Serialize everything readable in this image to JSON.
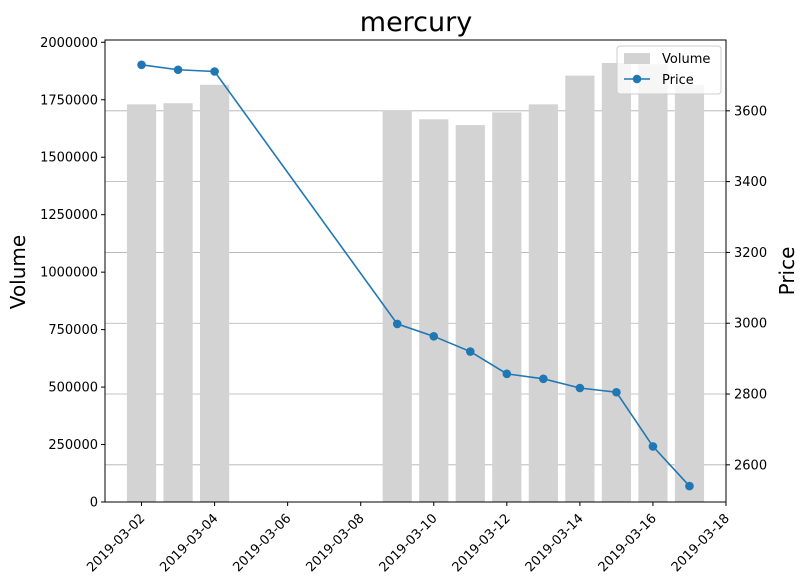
{
  "chart_data": {
    "type": "bar+line",
    "title": "mercury",
    "xlabel": "",
    "ylabel_left": "Volume",
    "ylabel_right": "Price",
    "x_ticks": [
      "2019-03-02",
      "2019-03-04",
      "2019-03-06",
      "2019-03-08",
      "2019-03-10",
      "2019-03-12",
      "2019-03-14",
      "2019-03-16",
      "2019-03-18"
    ],
    "x_range": [
      "2019-03-01",
      "2019-03-18"
    ],
    "y_left_ticks": [
      "0",
      "250000",
      "500000",
      "750000",
      "1000000",
      "1250000",
      "1500000",
      "1750000",
      "2000000"
    ],
    "y_left_range": [
      0,
      2010000
    ],
    "y_right_ticks": [
      "2600",
      "2800",
      "3000",
      "3200",
      "3400",
      "3600"
    ],
    "y_right_range": [
      2495,
      3800
    ],
    "grid": "horizontal, right axis",
    "legend_position": "top-right",
    "colors": {
      "volume": "#d3d3d3",
      "price": "#1f77b4",
      "grid": "#b0b0b0"
    },
    "series": [
      {
        "name": "Volume",
        "kind": "bar",
        "axis": "left",
        "points": [
          {
            "date": "2019-03-02",
            "value": 1730000
          },
          {
            "date": "2019-03-03",
            "value": 1735000
          },
          {
            "date": "2019-03-04",
            "value": 1815000
          },
          {
            "date": "2019-03-09",
            "value": 1705000
          },
          {
            "date": "2019-03-10",
            "value": 1665000
          },
          {
            "date": "2019-03-11",
            "value": 1640000
          },
          {
            "date": "2019-03-12",
            "value": 1695000
          },
          {
            "date": "2019-03-13",
            "value": 1730000
          },
          {
            "date": "2019-03-14",
            "value": 1855000
          },
          {
            "date": "2019-03-15",
            "value": 1910000
          },
          {
            "date": "2019-03-16",
            "value": 1905000
          },
          {
            "date": "2019-03-17",
            "value": 1815000
          }
        ]
      },
      {
        "name": "Price",
        "kind": "line",
        "axis": "right",
        "points": [
          {
            "date": "2019-03-02",
            "value": 3730
          },
          {
            "date": "2019-03-03",
            "value": 3716
          },
          {
            "date": "2019-03-04",
            "value": 3711
          },
          {
            "date": "2019-03-09",
            "value": 2998
          },
          {
            "date": "2019-03-10",
            "value": 2963
          },
          {
            "date": "2019-03-11",
            "value": 2920
          },
          {
            "date": "2019-03-12",
            "value": 2857
          },
          {
            "date": "2019-03-13",
            "value": 2843
          },
          {
            "date": "2019-03-14",
            "value": 2817
          },
          {
            "date": "2019-03-15",
            "value": 2805
          },
          {
            "date": "2019-03-16",
            "value": 2652
          },
          {
            "date": "2019-03-17",
            "value": 2540
          }
        ]
      }
    ]
  }
}
